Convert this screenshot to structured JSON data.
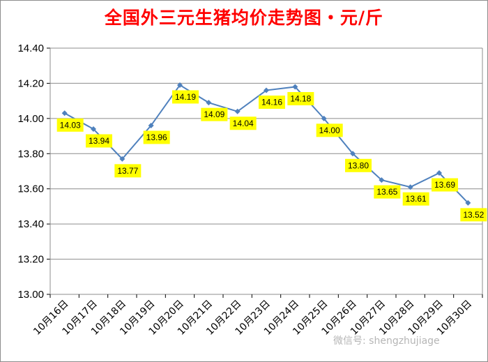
{
  "chart_data": {
    "type": "line",
    "title": "全国外三元生猪均价走势图・元/斤",
    "categories": [
      "10月16日",
      "10月17日",
      "10月18日",
      "10月19日",
      "10月20日",
      "10月21日",
      "10月22日",
      "10月23日",
      "10月24日",
      "10月25日",
      "10月26日",
      "10月27日",
      "10月28日",
      "10月29日",
      "10月30日"
    ],
    "values": [
      14.03,
      13.94,
      13.77,
      13.96,
      14.19,
      14.09,
      14.04,
      14.16,
      14.18,
      14.0,
      13.8,
      13.65,
      13.61,
      13.69,
      13.52
    ],
    "data_labels": [
      "14.03",
      "13.94",
      "13.77",
      "13.96",
      "14.19",
      "14.09",
      "14.04",
      "14.16",
      "14.18",
      "14.00",
      "13.80",
      "13.65",
      "13.61",
      "13.69",
      "13.52"
    ],
    "ylim": [
      13.0,
      14.4
    ],
    "y_ticks": [
      "13.00",
      "13.20",
      "13.40",
      "13.60",
      "13.80",
      "14.00",
      "14.20",
      "14.40"
    ],
    "grid": true,
    "legend": "none",
    "colors": {
      "line": "#4f81bd",
      "marker": "#4f81bd",
      "label_bg": "#ffff00",
      "title": "#ff0000",
      "grid": "#8c8c8c"
    }
  },
  "watermark": "微信号: shengzhujiage"
}
